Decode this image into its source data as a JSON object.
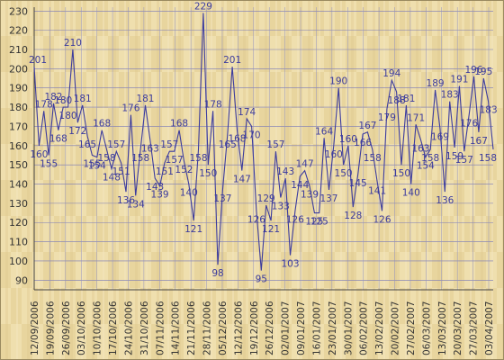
{
  "chart_data": {
    "type": "line",
    "title": "",
    "xlabel": "",
    "ylabel": "",
    "ylim": [
      85,
      232
    ],
    "y_ticks": [
      90,
      100,
      110,
      120,
      130,
      140,
      150,
      160,
      170,
      180,
      190,
      200,
      210,
      220,
      230
    ],
    "x_tick_labels": [
      "12/09/2006",
      "19/09/2006",
      "26/09/2006",
      "03/10/2006",
      "10/10/2006",
      "17/10/2006",
      "24/10/2006",
      "31/10/2006",
      "07/11/2006",
      "14/11/2006",
      "21/11/2006",
      "28/11/2006",
      "05/12/2006",
      "12/12/2006",
      "19/12/2006",
      "26/12/2006",
      "02/01/2007",
      "09/01/2007",
      "16/01/2007",
      "23/01/2007",
      "30/01/2007",
      "06/02/2007",
      "13/02/2007",
      "20/02/2007",
      "27/02/2007",
      "06/03/2007",
      "13/03/2007",
      "20/03/2007",
      "27/03/2007",
      "03/04/2007"
    ],
    "grid": true,
    "line_color": "#3b3b9e",
    "background_color": "#e8d59e",
    "series": [
      {
        "values": [
          201,
          160,
          178,
          155,
          182,
          168,
          180,
          180,
          210,
          172,
          181,
          165,
          155,
          154,
          168,
          158,
          148,
          157,
          151,
          136,
          176,
          134,
          158,
          181,
          163,
          143,
          139,
          151,
          157,
          157,
          168,
          152,
          140,
          121,
          158,
          229,
          150,
          178,
          98,
          137,
          165,
          201,
          168,
          147,
          174,
          170,
          126,
          95,
          129,
          121,
          157,
          133,
          143,
          103,
          126,
          144,
          147,
          139,
          125,
          125,
          164,
          137,
          160,
          190,
          150,
          160,
          128,
          145,
          166,
          167,
          158,
          141,
          126,
          179,
          194,
          188,
          150,
          181,
          140,
          171,
          163,
          154,
          158,
          189,
          169,
          136,
          183,
          159,
          191,
          157,
          176,
          196,
          167,
          195,
          183,
          158
        ]
      }
    ]
  }
}
